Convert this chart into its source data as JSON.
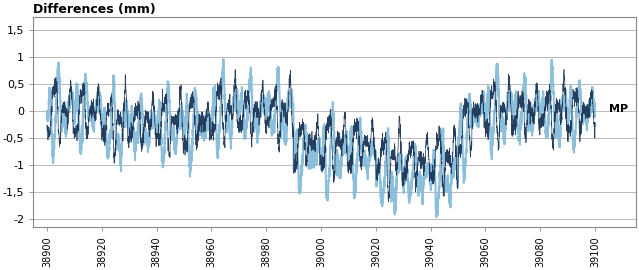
{
  "title": "Differences (mm)",
  "xlabel_right": "MP",
  "x_start": 38900,
  "x_end": 39100,
  "x_step": 20,
  "y_ticks": [
    -2,
    -1.5,
    -1,
    -0.5,
    0,
    0.5,
    1,
    1.5
  ],
  "ylim": [
    -2.15,
    1.75
  ],
  "xlim_left": 38895,
  "xlim_right": 39115,
  "color_light": "#7fb8d8",
  "color_dark": "#1c3557",
  "background": "#ffffff",
  "grid_color": "#b0b0b0",
  "seed": 7,
  "n_points": 4000
}
